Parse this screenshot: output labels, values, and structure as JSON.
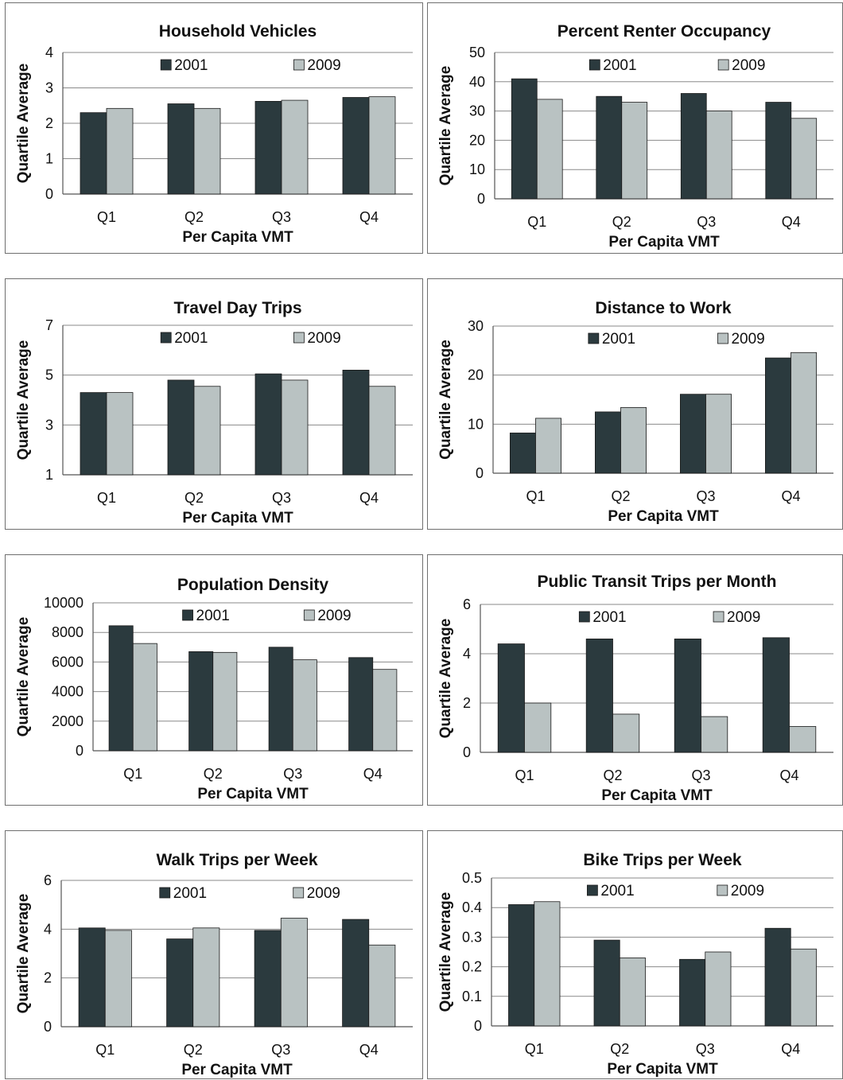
{
  "colors": {
    "y2001": "#2b3a3e",
    "y2009": "#b9c2c2",
    "grid": "#8a8a8a",
    "bar_edge": "#1a1a1a"
  },
  "charts": [
    {
      "id": "household-vehicles",
      "chart_data": {
        "type": "bar",
        "title": "Household Vehicles",
        "xlabel": "Per Capita VMT",
        "ylabel": "Quartile Average",
        "categories": [
          "Q1",
          "Q2",
          "Q3",
          "Q4"
        ],
        "series": [
          {
            "name": "2001",
            "values": [
              2.3,
              2.55,
              2.62,
              2.73
            ]
          },
          {
            "name": "2009",
            "values": [
              2.42,
              2.42,
              2.65,
              2.75
            ]
          }
        ],
        "ylim": [
          0,
          4
        ],
        "yticks": [
          "0",
          "1",
          "2",
          "3",
          "4"
        ],
        "grid": true,
        "legend": "top-center"
      }
    },
    {
      "id": "percent-renter-occupancy",
      "chart_data": {
        "type": "bar",
        "title": "Percent Renter Occupancy",
        "xlabel": "Per Capita VMT",
        "ylabel": "Quartile Average",
        "categories": [
          "Q1",
          "Q2",
          "Q3",
          "Q4"
        ],
        "series": [
          {
            "name": "2001",
            "values": [
              41,
              35,
              36,
              33
            ]
          },
          {
            "name": "2009",
            "values": [
              34,
              33,
              30,
              27.5
            ]
          }
        ],
        "ylim": [
          0,
          50
        ],
        "yticks": [
          "0",
          "10",
          "20",
          "30",
          "40",
          "50"
        ],
        "grid": true,
        "legend": "top-center"
      }
    },
    {
      "id": "travel-day-trips",
      "chart_data": {
        "type": "bar",
        "title": "Travel Day Trips",
        "xlabel": "Per Capita VMT",
        "ylabel": "Quartile Average",
        "categories": [
          "Q1",
          "Q2",
          "Q3",
          "Q4"
        ],
        "series": [
          {
            "name": "2001",
            "values": [
              4.3,
              4.8,
              5.05,
              5.2
            ]
          },
          {
            "name": "2009",
            "values": [
              4.3,
              4.55,
              4.8,
              4.55
            ]
          }
        ],
        "ylim": [
          1,
          7
        ],
        "yticks": [
          "1",
          "3",
          "5",
          "7"
        ],
        "grid": true,
        "legend": "top-center"
      }
    },
    {
      "id": "distance-to-work",
      "chart_data": {
        "type": "bar",
        "title": "Distance to Work",
        "xlabel": "Per Capita VMT",
        "ylabel": "Quartile Average",
        "categories": [
          "Q1",
          "Q2",
          "Q3",
          "Q4"
        ],
        "series": [
          {
            "name": "2001",
            "values": [
              8.2,
              12.5,
              16.1,
              23.5
            ]
          },
          {
            "name": "2009",
            "values": [
              11.2,
              13.4,
              16.1,
              24.6
            ]
          }
        ],
        "ylim": [
          0,
          30
        ],
        "yticks": [
          "0",
          "10",
          "20",
          "30"
        ],
        "grid": true,
        "legend": "top-center"
      }
    },
    {
      "id": "population-density",
      "chart_data": {
        "type": "bar",
        "title": "Population Density",
        "xlabel": "Per Capita VMT",
        "ylabel": "Quartile Average",
        "categories": [
          "Q1",
          "Q2",
          "Q3",
          "Q4"
        ],
        "series": [
          {
            "name": "2001",
            "values": [
              8450,
              6700,
              7000,
              6300
            ]
          },
          {
            "name": "2009",
            "values": [
              7250,
              6650,
              6150,
              5500
            ]
          }
        ],
        "ylim": [
          0,
          10000
        ],
        "yticks": [
          "0",
          "2000",
          "4000",
          "6000",
          "8000",
          "10000"
        ],
        "grid": true,
        "legend": "top-center"
      }
    },
    {
      "id": "public-transit-trips-per-month",
      "chart_data": {
        "type": "bar",
        "title": "Public Transit Trips per Month",
        "xlabel": "Per Capita VMT",
        "ylabel": "Quartile Average",
        "categories": [
          "Q1",
          "Q2",
          "Q3",
          "Q4"
        ],
        "series": [
          {
            "name": "2001",
            "values": [
              4.4,
              4.6,
              4.6,
              4.65
            ]
          },
          {
            "name": "2009",
            "values": [
              2.0,
              1.55,
              1.45,
              1.05
            ]
          }
        ],
        "ylim": [
          0,
          6
        ],
        "yticks": [
          "0",
          "2",
          "4",
          "6"
        ],
        "grid": true,
        "legend": "top-center"
      }
    },
    {
      "id": "walk-trips-per-week",
      "chart_data": {
        "type": "bar",
        "title": "Walk Trips per Week",
        "xlabel": "Per Capita VMT",
        "ylabel": "Quartile Average",
        "categories": [
          "Q1",
          "Q2",
          "Q3",
          "Q4"
        ],
        "series": [
          {
            "name": "2001",
            "values": [
              4.05,
              3.6,
              3.95,
              4.4
            ]
          },
          {
            "name": "2009",
            "values": [
              3.95,
              4.05,
              4.45,
              3.35
            ]
          }
        ],
        "ylim": [
          0,
          6
        ],
        "yticks": [
          "0",
          "2",
          "4",
          "6"
        ],
        "grid": true,
        "legend": "top-center"
      }
    },
    {
      "id": "bike-trips-per-week",
      "chart_data": {
        "type": "bar",
        "title": "Bike Trips per Week",
        "xlabel": "Per Capita VMT",
        "ylabel": "Quartile Average",
        "categories": [
          "Q1",
          "Q2",
          "Q3",
          "Q4"
        ],
        "series": [
          {
            "name": "2001",
            "values": [
              0.41,
              0.29,
              0.225,
              0.33
            ]
          },
          {
            "name": "2009",
            "values": [
              0.42,
              0.23,
              0.25,
              0.26
            ]
          }
        ],
        "ylim": [
          0,
          0.5
        ],
        "yticks": [
          "0",
          "0.1",
          "0.2",
          "0.3",
          "0.4",
          "0.5"
        ],
        "grid": true,
        "legend": "top-center"
      }
    }
  ]
}
